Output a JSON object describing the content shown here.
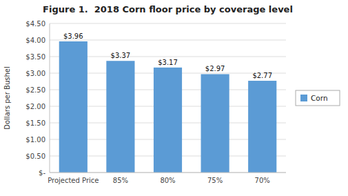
{
  "chart_data": {
    "type": "bar",
    "title": "Figure 1.  2018 Corn floor price by coverage level",
    "categories": [
      "Projected Price",
      "85%",
      "80%",
      "75%",
      "70%"
    ],
    "series": [
      {
        "name": "Corn",
        "color": "#5B9BD5",
        "values": [
          3.96,
          3.37,
          3.17,
          2.97,
          2.77
        ],
        "value_labels": [
          "$3.96",
          "$3.37",
          "$3.17",
          "$2.97",
          "$2.77"
        ]
      }
    ],
    "ylabel": "Dollars per Bushel",
    "ylim": [
      0,
      4.5
    ],
    "yticks": [
      {
        "value": 0,
        "label": "$-"
      },
      {
        "value": 0.5,
        "label": "$0.50"
      },
      {
        "value": 1,
        "label": "$1.00"
      },
      {
        "value": 1.5,
        "label": "$1.50"
      },
      {
        "value": 2,
        "label": "$2.00"
      },
      {
        "value": 2.5,
        "label": "$2.50"
      },
      {
        "value": 3,
        "label": "$3.00"
      },
      {
        "value": 3.5,
        "label": "$3.50"
      },
      {
        "value": 4,
        "label": "$4.00"
      },
      {
        "value": 4.5,
        "label": "$4.50"
      }
    ],
    "grid": true,
    "data_labels": true,
    "legend": "right"
  }
}
